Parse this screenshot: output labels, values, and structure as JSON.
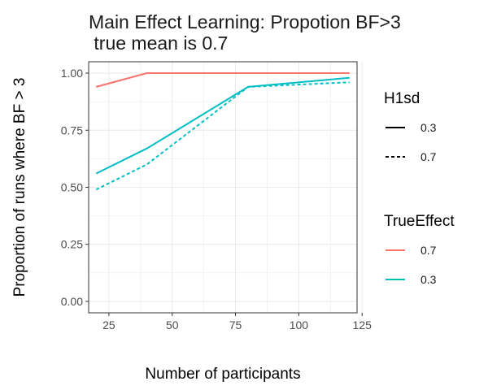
{
  "chart_data": {
    "type": "line",
    "title_lines": [
      "Main Effect Learning: Propotion BF>3",
      " true mean is 0.7"
    ],
    "xlabel": "Number of participants",
    "ylabel": "Proportion of runs where BF > 3",
    "xlim": [
      17,
      123
    ],
    "ylim": [
      -0.05,
      1.05
    ],
    "x_ticks": [
      25,
      50,
      75,
      100,
      125
    ],
    "x_tick_labels": [
      "25",
      "50",
      "75",
      "100",
      "125"
    ],
    "y_ticks": [
      0.0,
      0.25,
      0.5,
      0.75,
      1.0
    ],
    "y_tick_labels": [
      "0.00",
      "0.25",
      "0.50",
      "0.75",
      "1.00"
    ],
    "grid": true,
    "legend_position": "right",
    "legends": [
      {
        "title": "H1sd",
        "kind": "linetype",
        "entries": [
          {
            "label": "0.3",
            "linetype": "solid"
          },
          {
            "label": "0.7",
            "linetype": "dashed"
          }
        ]
      },
      {
        "title": "TrueEffect",
        "kind": "colour",
        "entries": [
          {
            "label": "0.7",
            "color": "#F8766D"
          },
          {
            "label": "0.3",
            "color": "#00BFC4"
          }
        ]
      }
    ],
    "series": [
      {
        "name": "TrueEffect 0.7, H1sd 0.3",
        "color": "#F8766D",
        "linetype": "solid",
        "x": [
          20,
          40,
          80,
          120
        ],
        "y": [
          0.94,
          1.0,
          1.0,
          1.0
        ]
      },
      {
        "name": "TrueEffect 0.7, H1sd 0.7",
        "color": "#F8766D",
        "linetype": "dashed",
        "x": [
          20,
          40,
          80,
          120
        ],
        "y": [
          0.94,
          1.0,
          1.0,
          1.0
        ]
      },
      {
        "name": "TrueEffect 0.3, H1sd 0.3",
        "color": "#00BFC4",
        "linetype": "solid",
        "x": [
          20,
          40,
          80,
          120
        ],
        "y": [
          0.56,
          0.67,
          0.94,
          0.98
        ]
      },
      {
        "name": "TrueEffect 0.3, H1sd 0.7",
        "color": "#00BFC4",
        "linetype": "dashed",
        "x": [
          20,
          40,
          80,
          120
        ],
        "y": [
          0.49,
          0.6,
          0.94,
          0.96
        ]
      }
    ],
    "panel_background": "#ffffff",
    "grid_color": "#ebebeb",
    "border_color": "#333333"
  }
}
